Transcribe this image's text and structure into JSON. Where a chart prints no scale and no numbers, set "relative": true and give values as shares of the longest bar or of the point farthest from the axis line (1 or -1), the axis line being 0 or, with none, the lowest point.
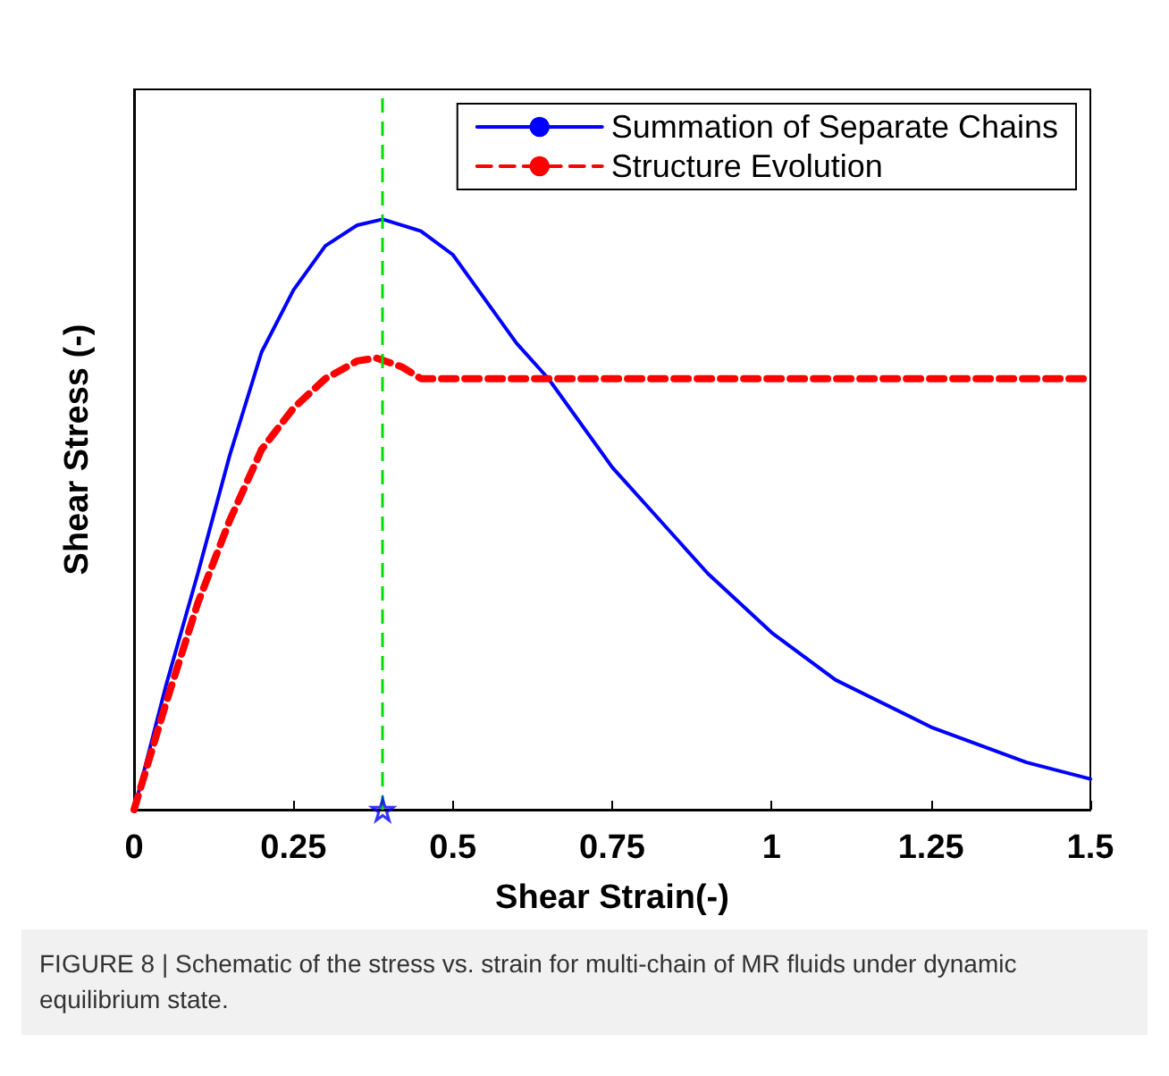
{
  "chart_data": {
    "type": "line",
    "relative": true,
    "xlabel": "Shear Strain(-)",
    "ylabel": "Shear Stress (-)",
    "xlim": [
      0,
      1.5
    ],
    "xticks": [
      0,
      0.25,
      0.5,
      0.75,
      1,
      1.25,
      1.5
    ],
    "legend": "top right",
    "series": [
      {
        "name": "Summation of Separate Chains",
        "color": "#0000ff",
        "line_style": "solid",
        "x": [
          0,
          0.05,
          0.1,
          0.15,
          0.2,
          0.25,
          0.3,
          0.35,
          0.39,
          0.45,
          0.5,
          0.6,
          0.65,
          0.75,
          0.9,
          1.0,
          1.1,
          1.25,
          1.4,
          1.5
        ],
        "values": [
          0,
          0.21,
          0.4,
          0.6,
          0.775,
          0.88,
          0.955,
          0.99,
          1,
          0.98,
          0.94,
          0.79,
          0.73,
          0.58,
          0.4,
          0.3,
          0.22,
          0.14,
          0.08,
          0.052
        ]
      },
      {
        "name": "Structure Evolution",
        "color": "#ff0000",
        "line_style": "dashed",
        "x": [
          0,
          0.05,
          0.1,
          0.15,
          0.2,
          0.25,
          0.3,
          0.35,
          0.38,
          0.42,
          0.45,
          1.5
        ],
        "values": [
          0,
          0.18,
          0.35,
          0.49,
          0.61,
          0.68,
          0.73,
          0.76,
          0.765,
          0.75,
          0.73,
          0.73
        ]
      },
      {
        "type": "scatter",
        "marker": "star",
        "color": "#0000ff",
        "x": [
          0.39
        ],
        "values": [
          0
        ]
      }
    ],
    "ref_lines": [
      {
        "axis": "x",
        "value": 0.39,
        "color": "#00dd00",
        "line_style": "dashed"
      }
    ],
    "annotations": [
      "FIGURE 8 | Schematic of the stress vs. strain for multi-chain of MR fluids under dynamic equilibrium state."
    ]
  }
}
